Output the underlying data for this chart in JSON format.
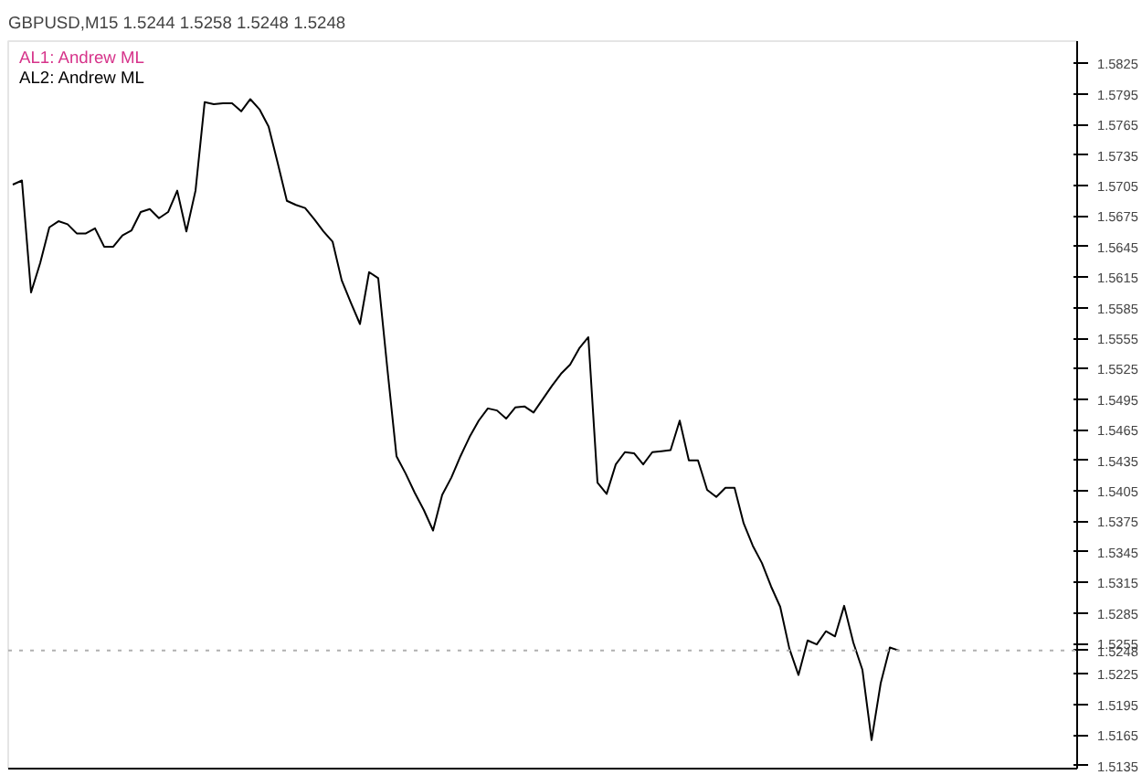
{
  "chart_data": {
    "type": "line",
    "title": "GBPUSD,M15 1.5244 1.5258 1.5248 1.5248",
    "ylim": [
      1.5132,
      1.5847
    ],
    "categories": [
      null,
      null,
      null,
      null,
      null,
      null,
      null,
      null,
      null,
      null,
      null,
      null,
      null,
      null,
      null,
      null,
      null,
      null,
      null,
      null,
      null,
      null,
      null,
      null,
      null,
      null,
      null,
      null,
      null,
      null,
      null,
      null,
      null,
      null,
      null,
      null,
      null,
      null,
      null,
      null,
      null,
      null,
      null,
      null,
      null,
      null,
      null,
      null,
      null,
      null,
      null,
      null,
      null,
      null,
      null,
      null,
      null,
      null,
      null,
      null,
      null,
      null,
      null,
      null,
      null,
      null,
      null,
      null,
      null,
      null,
      null,
      null,
      null,
      null,
      null,
      null,
      null,
      null,
      null,
      null,
      null,
      null,
      null,
      null,
      null,
      null,
      null,
      null,
      null,
      null,
      null,
      null,
      null,
      null,
      null,
      null,
      null,
      null,
      null,
      null,
      null,
      null,
      null,
      null,
      null,
      null,
      null,
      null,
      null,
      null,
      null,
      null,
      null,
      null,
      null,
      null,
      null
    ],
    "yticks": [
      1.5135,
      1.5165,
      1.5195,
      1.5225,
      {
        "value": 1.5248,
        "label": "1.5248"
      },
      1.5255,
      1.5285,
      1.5315,
      1.5345,
      1.5375,
      1.5405,
      1.5435,
      1.5465,
      1.5495,
      1.5525,
      1.5555,
      1.5585,
      1.5615,
      1.5645,
      1.5675,
      1.5705,
      1.5735,
      1.5765,
      1.5795,
      1.5825
    ],
    "tick_labels": "y",
    "grid": false,
    "annotations": [
      "AL1: Andrew ML",
      "AL2: Andrew ML"
    ],
    "ref_lines": [
      {
        "axis": "y",
        "value": 1.5248,
        "color": "#b0b0b0",
        "line_style": "dotted"
      }
    ],
    "series": [
      {
        "color": "#000000",
        "values": [
          1.5706,
          1.571,
          1.56,
          1.5629,
          1.5664,
          1.567,
          1.5667,
          1.5658,
          1.5658,
          1.5663,
          1.5645,
          1.5645,
          1.5656,
          1.5661,
          1.5679,
          1.5682,
          1.5673,
          1.5679,
          1.57,
          1.566,
          1.57,
          1.5787,
          1.5785,
          1.5786,
          1.5786,
          1.5778,
          1.579,
          1.578,
          1.5763,
          1.5727,
          1.569,
          1.5686,
          1.5683,
          1.5672,
          1.566,
          1.565,
          1.5612,
          1.559,
          1.5569,
          1.562,
          1.5614,
          1.5525,
          1.5439,
          1.5422,
          1.5403,
          1.5386,
          1.5366,
          1.5401,
          1.5418,
          1.5439,
          1.5458,
          1.5474,
          1.5486,
          1.5484,
          1.5476,
          1.5487,
          1.5488,
          1.5482,
          1.5495,
          1.5508,
          1.552,
          1.5529,
          1.5545,
          1.5556,
          1.5413,
          1.5402,
          1.5431,
          1.5443,
          1.5442,
          1.5431,
          1.5443,
          1.5444,
          1.5445,
          1.5474,
          1.5435,
          1.5435,
          1.5406,
          1.5399,
          1.5408,
          1.5408,
          1.5373,
          1.5351,
          1.5334,
          1.5311,
          1.5291,
          1.525,
          1.5224,
          1.5258,
          1.5254,
          1.5267,
          1.5262,
          1.5292,
          1.5256,
          1.5229,
          1.516,
          1.5216,
          1.5251,
          1.5248,
          null,
          null,
          null,
          null,
          null,
          null,
          null,
          null,
          null,
          null,
          null,
          null,
          null,
          null,
          null,
          null,
          null,
          null,
          null
        ]
      }
    ]
  }
}
